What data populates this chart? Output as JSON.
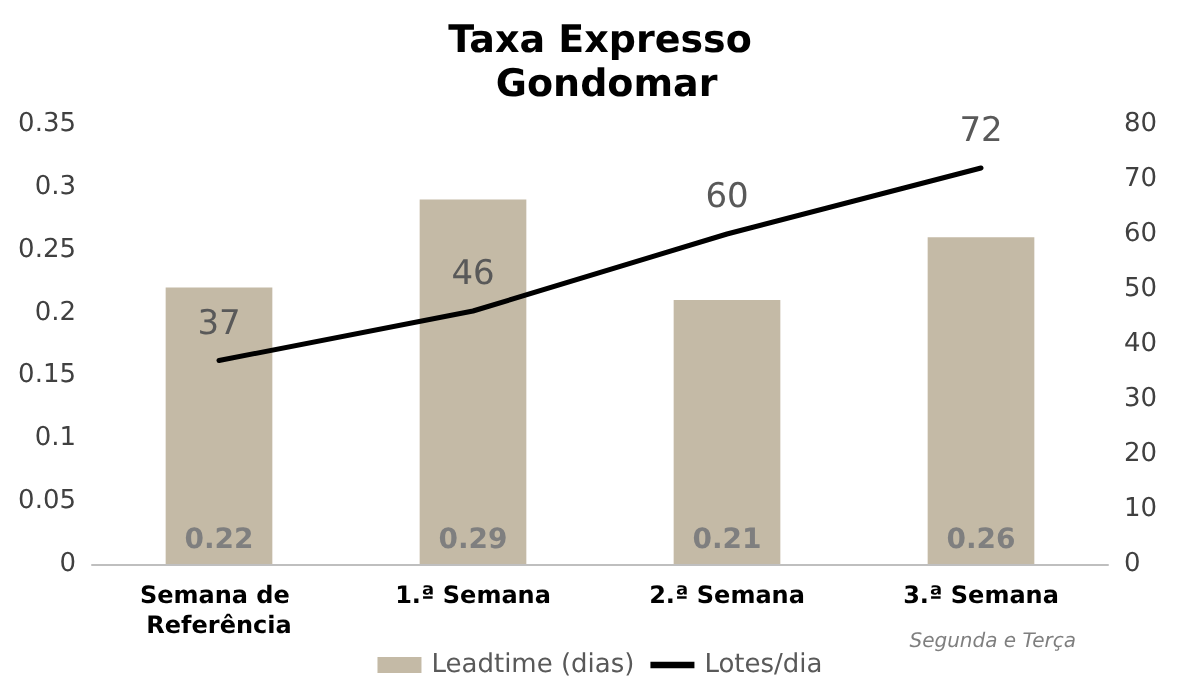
{
  "chart_data": {
    "type": "bar",
    "title": "Taxa Expresso Gondomar",
    "categories": [
      "Semana de Referência",
      "1.ª Semana",
      "2.ª Semana",
      "3.ª Semana"
    ],
    "series": [
      {
        "name": "Leadtime (dias)",
        "color": "#c4baa6",
        "values": [
          0.22,
          0.29,
          0.21,
          0.26
        ]
      },
      {
        "name": "Lotes/dia",
        "type": "line",
        "axis": "y2",
        "color": "#000000",
        "values": [
          37,
          46,
          60,
          72
        ]
      }
    ],
    "ylim": [
      0,
      0.35
    ],
    "yticks": [
      0,
      0.05,
      0.1,
      0.15,
      0.2,
      0.25,
      0.3,
      0.35
    ],
    "y2lim": [
      0,
      80
    ],
    "y2ticks": [
      0,
      10,
      20,
      30,
      40,
      50,
      60,
      70,
      80
    ],
    "annotations": [
      "Segunda e Terça"
    ],
    "data_labels": true,
    "legend": "bottom",
    "grid": false,
    "marker": "none"
  }
}
